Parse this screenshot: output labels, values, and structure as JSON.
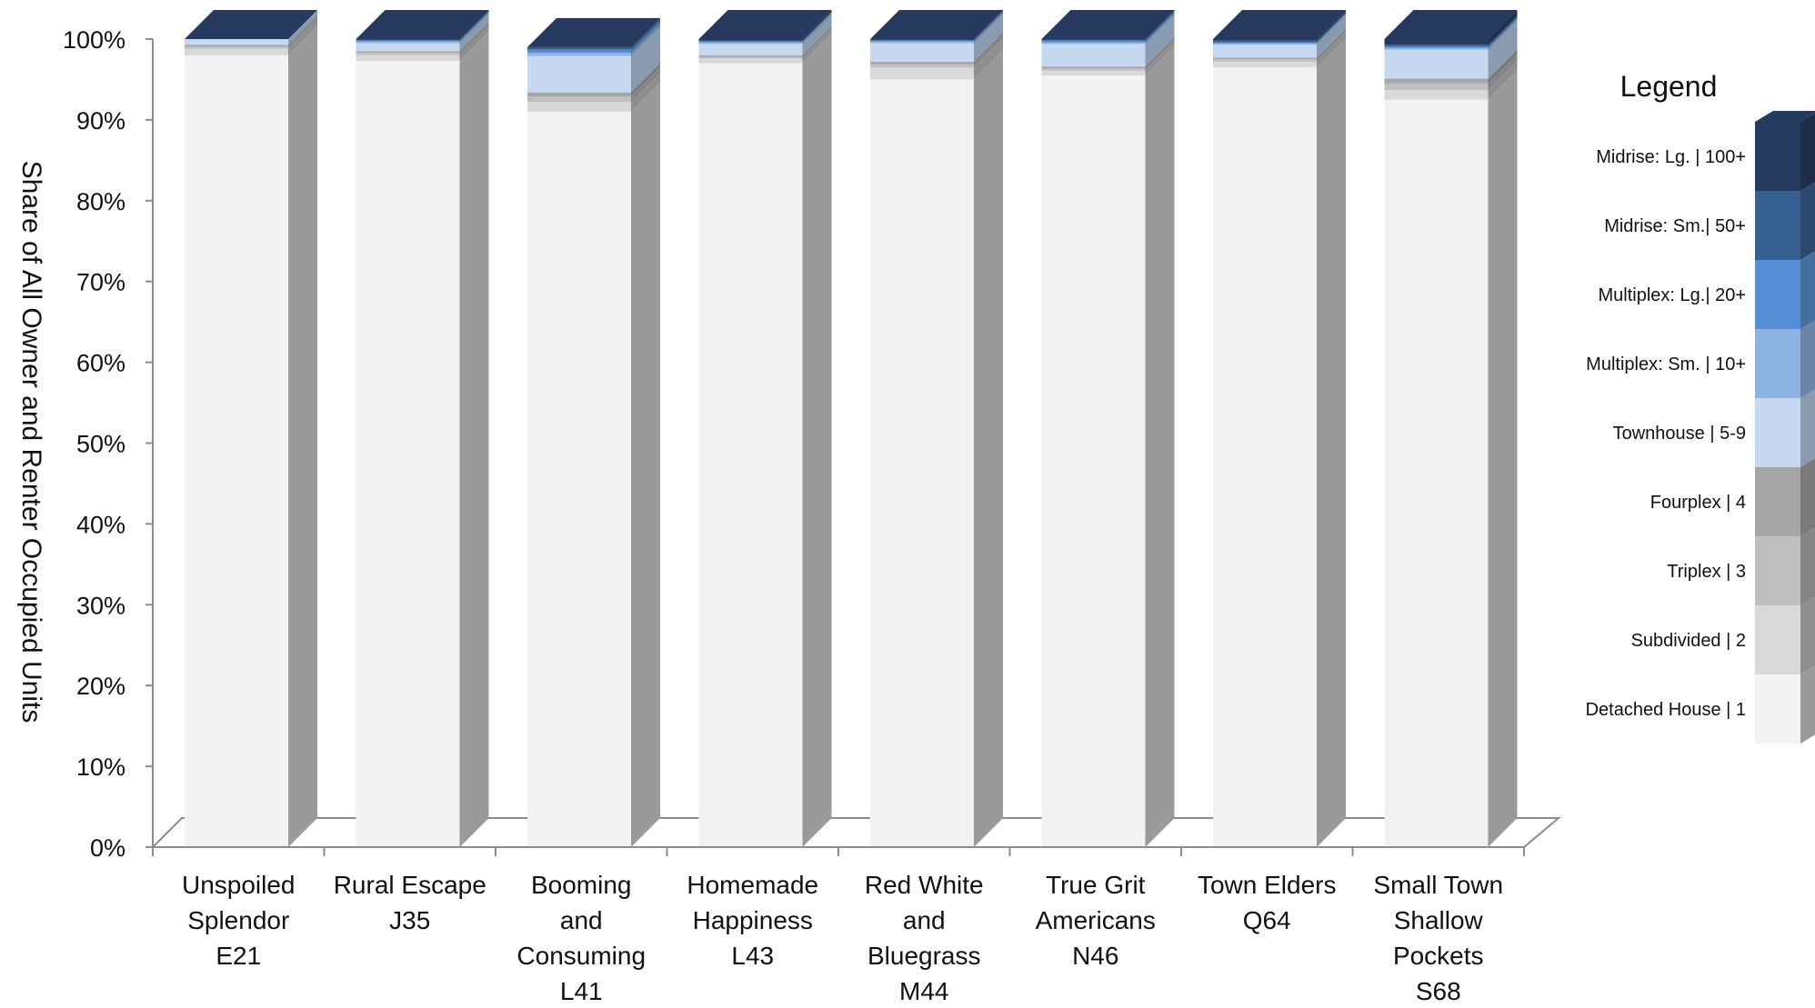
{
  "chart_data": {
    "type": "bar",
    "stacked": true,
    "three_d": true,
    "ylabel": "Share of All Owner and Renter Occupied Units",
    "ylim": [
      0,
      100
    ],
    "yticks": [
      "0%",
      "10%",
      "20%",
      "30%",
      "40%",
      "50%",
      "60%",
      "70%",
      "80%",
      "90%",
      "100%"
    ],
    "legend_title": "Legend",
    "legend_position": "right",
    "categories": [
      [
        "Unspoiled",
        "Splendor",
        "E21"
      ],
      [
        "Rural Escape",
        "J35"
      ],
      [
        "Booming",
        "and",
        "Consuming",
        "L41"
      ],
      [
        "Homemade",
        "Happiness",
        "L43"
      ],
      [
        "Red White",
        "and",
        "Bluegrass",
        "M44"
      ],
      [
        "True Grit",
        "Americans",
        "N46"
      ],
      [
        "Town Elders",
        "Q64"
      ],
      [
        "Small Town",
        "Shallow",
        "Pockets",
        "S68"
      ]
    ],
    "series": [
      {
        "name": "Detached House | 1",
        "color": "#f2f2f2",
        "side": "#9a9a9a",
        "values": [
          98.0,
          97.3,
          91.0,
          97.0,
          95.0,
          95.5,
          96.5,
          92.5
        ]
      },
      {
        "name": "Subdivided | 2",
        "color": "#d9d9d9",
        "side": "#8f8f8f",
        "values": [
          0.8,
          0.7,
          1.2,
          0.6,
          1.5,
          0.6,
          0.7,
          1.2
        ]
      },
      {
        "name": "Triplex | 3",
        "color": "#bfbfbf",
        "side": "#858585",
        "values": [
          0.3,
          0.3,
          0.7,
          0.2,
          0.4,
          0.3,
          0.3,
          0.8
        ]
      },
      {
        "name": "Fourplex | 4",
        "color": "#a6a6a6",
        "side": "#7a7a7a",
        "values": [
          0.2,
          0.2,
          0.5,
          0.2,
          0.3,
          0.2,
          0.2,
          0.6
        ]
      },
      {
        "name": "Townhouse | 5-9",
        "color": "#c6d9f1",
        "side": "#8a9bb0",
        "values": [
          0.7,
          1.0,
          4.5,
          1.4,
          2.3,
          2.8,
          1.6,
          3.6
        ]
      },
      {
        "name": "Multiplex: Sm. | 10+",
        "color": "#8db3e2",
        "side": "#6a85a8",
        "values": [
          0.0,
          0.2,
          0.4,
          0.2,
          0.2,
          0.2,
          0.2,
          0.2
        ]
      },
      {
        "name": "Multiplex: Lg.| 20+",
        "color": "#558ed5",
        "side": "#43709f",
        "values": [
          0.0,
          0.1,
          0.4,
          0.1,
          0.1,
          0.2,
          0.1,
          0.2
        ]
      },
      {
        "name": "Midrise: Sm.| 50+",
        "color": "#366092",
        "side": "#2a4a70",
        "values": [
          0.0,
          0.1,
          0.2,
          0.1,
          0.1,
          0.1,
          0.2,
          0.2
        ]
      },
      {
        "name": "Midrise: Lg. | 100+",
        "color": "#253a5e",
        "side": "#1d2d48",
        "values": [
          0.0,
          0.1,
          0.1,
          0.2,
          0.1,
          0.1,
          0.2,
          0.7
        ]
      }
    ]
  }
}
